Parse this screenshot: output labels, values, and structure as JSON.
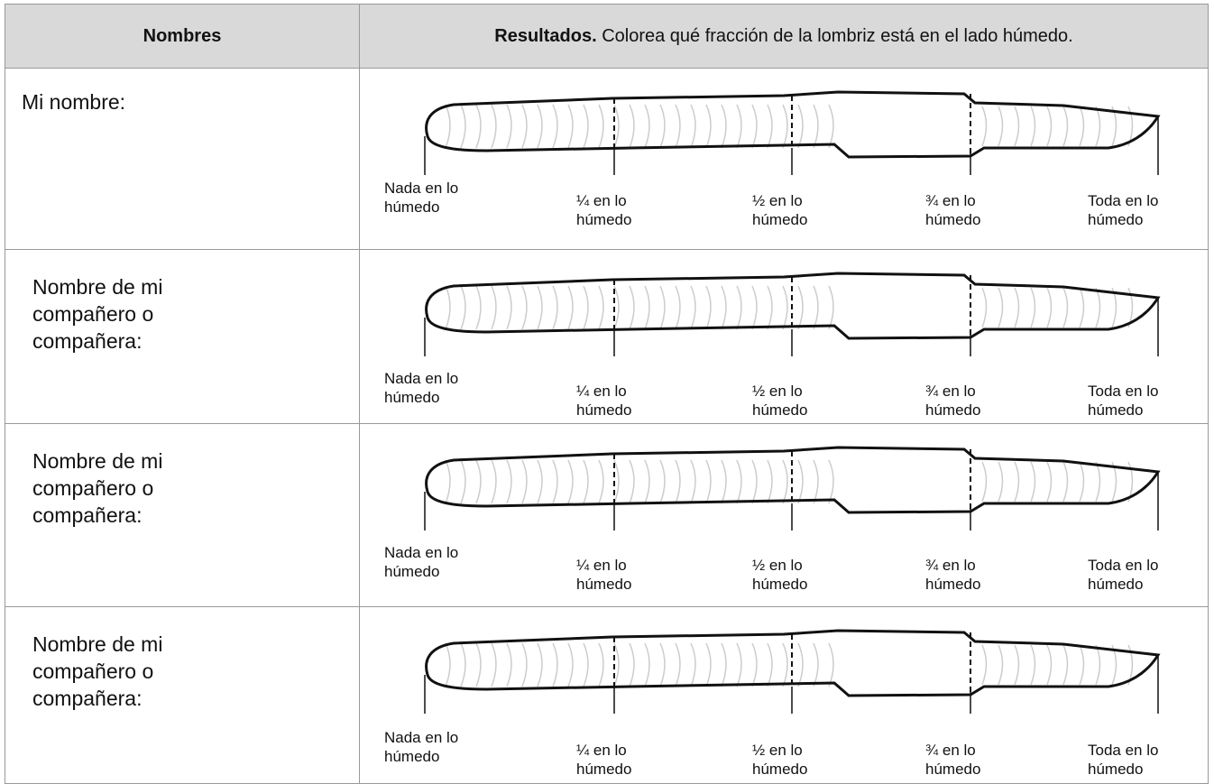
{
  "header": {
    "names": "Nombres",
    "results_bold": "Resultados.",
    "results_text": "Colorea qué fracción de la lombriz está en el lado húmedo."
  },
  "rows": [
    {
      "name": "Mi nombre:",
      "labels": [
        "Nada en lo húmedo",
        "¼ en lo húmedo",
        "½ en lo húmedo",
        "¾ en lo húmedo",
        "Toda en lo húmedo"
      ]
    },
    {
      "name": "Nombre de mi compañero o compañera:",
      "labels": [
        "Nada en lo húmedo",
        "¼ en lo húmedo",
        "½ en lo húmedo",
        "¾ en lo húmedo",
        "Toda en lo húmedo"
      ]
    },
    {
      "name": "Nombre de mi compañero o compañera:",
      "labels": [
        "Nada en lo húmedo",
        "¼ en lo húmedo",
        "½ en lo húmedo",
        "¾ en lo húmedo",
        "Toda en lo húmedo"
      ]
    },
    {
      "name": "Nombre de mi compañero o compañera:",
      "labels": [
        "Nada en lo húmedo",
        "¼ en lo húmedo",
        "½ en lo húmedo",
        "¾ en lo húmedo",
        "Toda en lo húmedo"
      ]
    }
  ]
}
